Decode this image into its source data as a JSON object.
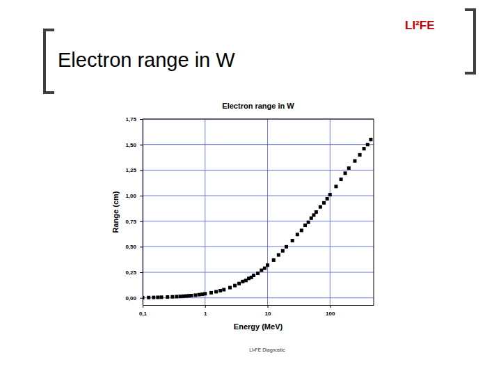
{
  "header": {
    "logo": "LI²FE",
    "title": "Electron range in W"
  },
  "footer": "LI²FE Diagnostic",
  "chart_data": {
    "type": "scatter",
    "title": "Electron range in W",
    "x_label": "Energy (MeV)",
    "y_label": "Range (cm)",
    "x": [
      0.1,
      0.125,
      0.15,
      0.175,
      0.2,
      0.25,
      0.3,
      0.35,
      0.4,
      0.45,
      0.5,
      0.55,
      0.6,
      0.7,
      0.8,
      0.9,
      1,
      1.25,
      1.5,
      1.75,
      2,
      2.5,
      3,
      3.5,
      4,
      4.5,
      5,
      5.5,
      6,
      7,
      8,
      9,
      10,
      12.5,
      15,
      17.5,
      20,
      25,
      30,
      35,
      40,
      45,
      50,
      55,
      60,
      70,
      80,
      90,
      100,
      125,
      150,
      175,
      200,
      250,
      300,
      350,
      400,
      450
    ],
    "values": [
      0.002,
      0.003,
      0.004,
      0.005,
      0.006,
      0.008,
      0.01,
      0.012,
      0.014,
      0.016,
      0.018,
      0.02,
      0.022,
      0.026,
      0.031,
      0.035,
      0.04,
      0.05,
      0.06,
      0.07,
      0.08,
      0.1,
      0.12,
      0.14,
      0.16,
      0.17,
      0.19,
      0.2,
      0.22,
      0.24,
      0.27,
      0.29,
      0.32,
      0.37,
      0.42,
      0.46,
      0.5,
      0.56,
      0.62,
      0.66,
      0.71,
      0.74,
      0.78,
      0.81,
      0.84,
      0.89,
      0.93,
      0.97,
      1.01,
      1.09,
      1.16,
      1.22,
      1.27,
      1.34,
      1.4,
      1.46,
      1.5,
      1.55
    ],
    "color": "#000000",
    "marker": "square",
    "log": "x",
    "grid": true,
    "xlim": [
      0.1,
      500
    ],
    "ylim": [
      -0.07,
      1.75
    ],
    "xticks": [
      {
        "value": 0.1,
        "label": "0,1"
      },
      1,
      10,
      100
    ],
    "yticks": [
      {
        "value": 0,
        "label": "0,00"
      },
      {
        "value": 0.25,
        "label": "0,25"
      },
      {
        "value": 0.5,
        "label": "0,50"
      },
      {
        "value": 0.75,
        "label": "0,75"
      },
      {
        "value": 1,
        "label": "1,00"
      },
      {
        "value": 1.25,
        "label": "1,25"
      },
      {
        "value": 1.5,
        "label": "1,50"
      },
      {
        "value": 1.75,
        "label": "1,75"
      }
    ]
  }
}
